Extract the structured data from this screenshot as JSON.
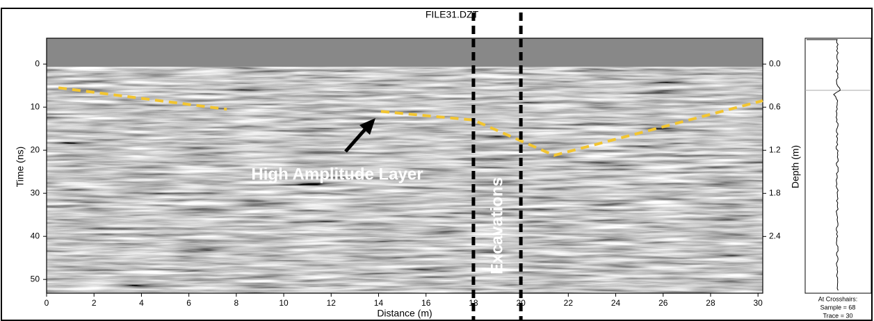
{
  "chart_data": {
    "type": "radargram",
    "title": "FILE31.DZT",
    "xlabel": "Distance (m)",
    "ylabel": "Time (ns)",
    "y2label": "Depth (m)",
    "xlim": [
      0,
      30.2
    ],
    "xticks": [
      0,
      2,
      4,
      6,
      8,
      10,
      12,
      14,
      16,
      18,
      20,
      22,
      24,
      26,
      28,
      30
    ],
    "ylim": [
      -6,
      53.2
    ],
    "yticks": [
      0,
      10,
      20,
      30,
      40,
      50
    ],
    "y2lim": [
      -0.36,
      3.19
    ],
    "y2ticks": [
      {
        "value": 0,
        "label": "0.0"
      },
      0.6,
      1.2,
      1.8,
      2.4
    ],
    "lines": [
      {
        "color": "#f2c531",
        "x": [
          0.5,
          7.6,
          null,
          14.1,
          18,
          21.4,
          30.2
        ],
        "values": [
          5.5,
          10.5,
          null,
          11,
          13,
          21.2,
          8.5
        ]
      }
    ],
    "vlines": [
      18,
      20
    ],
    "annotations": [
      "High Amplitude Layer",
      "Excavations"
    ],
    "readout": [
      "At Crosshairs:",
      "Sample = 68",
      "Trace = 30"
    ]
  }
}
